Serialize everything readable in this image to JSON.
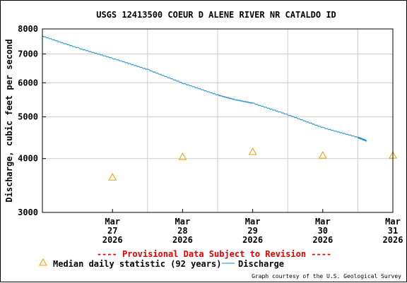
{
  "chart_data": {
    "type": "line",
    "title": "USGS 12413500 COEUR D ALENE RIVER NR CATALDO ID",
    "ylabel": "Discharge, cubic feet per second",
    "xlabel": "",
    "yscale": "log",
    "ylim": [
      3000,
      8000
    ],
    "y_ticks": [
      {
        "value": 3000,
        "label": "3000"
      },
      {
        "value": 4000,
        "label": "4000"
      },
      {
        "value": 5000,
        "label": "5000"
      },
      {
        "value": 6000,
        "label": "6000"
      },
      {
        "value": 7000,
        "label": "7000"
      },
      {
        "value": 8000,
        "label": "8000"
      }
    ],
    "xlim": [
      "2026-03-26T12:00",
      "2026-03-31T12:00"
    ],
    "x_ticks": [
      {
        "value": "2026-03-27",
        "month": "Mar",
        "day": "27",
        "year": "2026"
      },
      {
        "value": "2026-03-28",
        "month": "Mar",
        "day": "28",
        "year": "2026"
      },
      {
        "value": "2026-03-29",
        "month": "Mar",
        "day": "29",
        "year": "2026"
      },
      {
        "value": "2026-03-30",
        "month": "Mar",
        "day": "30",
        "year": "2026"
      },
      {
        "value": "2026-03-31",
        "month": "Mar",
        "day": "31",
        "year": "2026"
      }
    ],
    "grid": true,
    "series": [
      {
        "name": "Discharge",
        "color": "#1a8ec9",
        "style": "line",
        "x": [
          "2026-03-26T12:00",
          "2026-03-27T00:00",
          "2026-03-27T12:00",
          "2026-03-28T00:00",
          "2026-03-28T12:00",
          "2026-03-29T00:00",
          "2026-03-29T06:00",
          "2026-03-29T12:00",
          "2026-03-30T00:00",
          "2026-03-30T12:00",
          "2026-03-31T00:00",
          "2026-03-31T03:00"
        ],
        "values": [
          7700,
          7230,
          6840,
          6440,
          5990,
          5620,
          5480,
          5380,
          5060,
          4720,
          4480,
          4400
        ]
      },
      {
        "name": "Median daily statistic (92 years)",
        "color": "#e8a000",
        "style": "triangle",
        "x": [
          "2026-03-27",
          "2026-03-28",
          "2026-03-29",
          "2026-03-30",
          "2026-03-31"
        ],
        "values": [
          3620,
          4040,
          4150,
          4070,
          4070
        ]
      }
    ]
  },
  "notice": "---- Provisional Data Subject to Revision ----",
  "legend": {
    "median_label": "Median daily statistic (92 years)",
    "discharge_label": "Discharge"
  },
  "credit": "Graph courtesy of the U.S. Geological Survey",
  "colors": {
    "discharge": "#1a8ec9",
    "median": "#e8a000",
    "notice": "#e00000",
    "grid": "#cccccc"
  }
}
